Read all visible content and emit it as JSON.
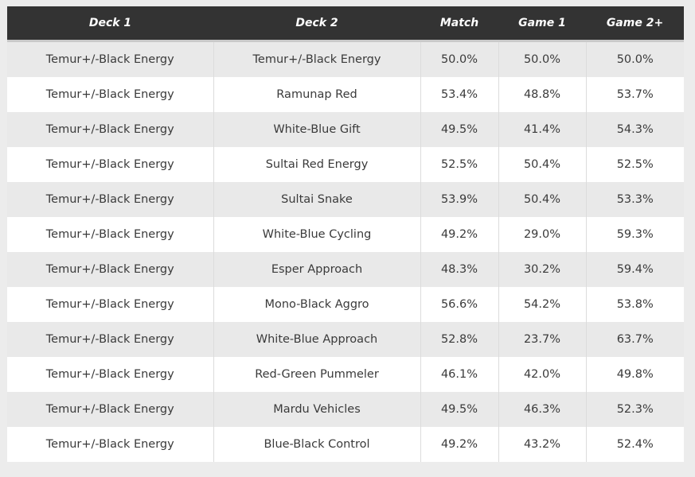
{
  "table": {
    "header": [
      "Deck 1",
      "Deck 2",
      "Match",
      "Game 1",
      "Game 2+"
    ],
    "rows": [
      [
        "Temur+/-Black Energy",
        "Temur+/-Black Energy",
        "50.0%",
        "50.0%",
        "50.0%"
      ],
      [
        "Temur+/-Black Energy",
        "Ramunap Red",
        "53.4%",
        "48.8%",
        "53.7%"
      ],
      [
        "Temur+/-Black Energy",
        "White-Blue Gift",
        "49.5%",
        "41.4%",
        "54.3%"
      ],
      [
        "Temur+/-Black Energy",
        "Sultai Red Energy",
        "52.5%",
        "50.4%",
        "52.5%"
      ],
      [
        "Temur+/-Black Energy",
        "Sultai Snake",
        "53.9%",
        "50.4%",
        "53.3%"
      ],
      [
        "Temur+/-Black Energy",
        "White-Blue Cycling",
        "49.2%",
        "29.0%",
        "59.3%"
      ],
      [
        "Temur+/-Black Energy",
        "Esper Approach",
        "48.3%",
        "30.2%",
        "59.4%"
      ],
      [
        "Temur+/-Black Energy",
        "Mono-Black Aggro",
        "56.6%",
        "54.2%",
        "53.8%"
      ],
      [
        "Temur+/-Black Energy",
        "White-Blue Approach",
        "52.8%",
        "23.7%",
        "63.7%"
      ],
      [
        "Temur+/-Black Energy",
        "Red-Green Pummeler",
        "46.1%",
        "42.0%",
        "49.8%"
      ],
      [
        "Temur+/-Black Energy",
        "Mardu Vehicles",
        "49.5%",
        "46.3%",
        "52.3%"
      ],
      [
        "Temur+/-Black Energy",
        "Blue-Black Control",
        "49.2%",
        "43.2%",
        "52.4%"
      ]
    ]
  }
}
